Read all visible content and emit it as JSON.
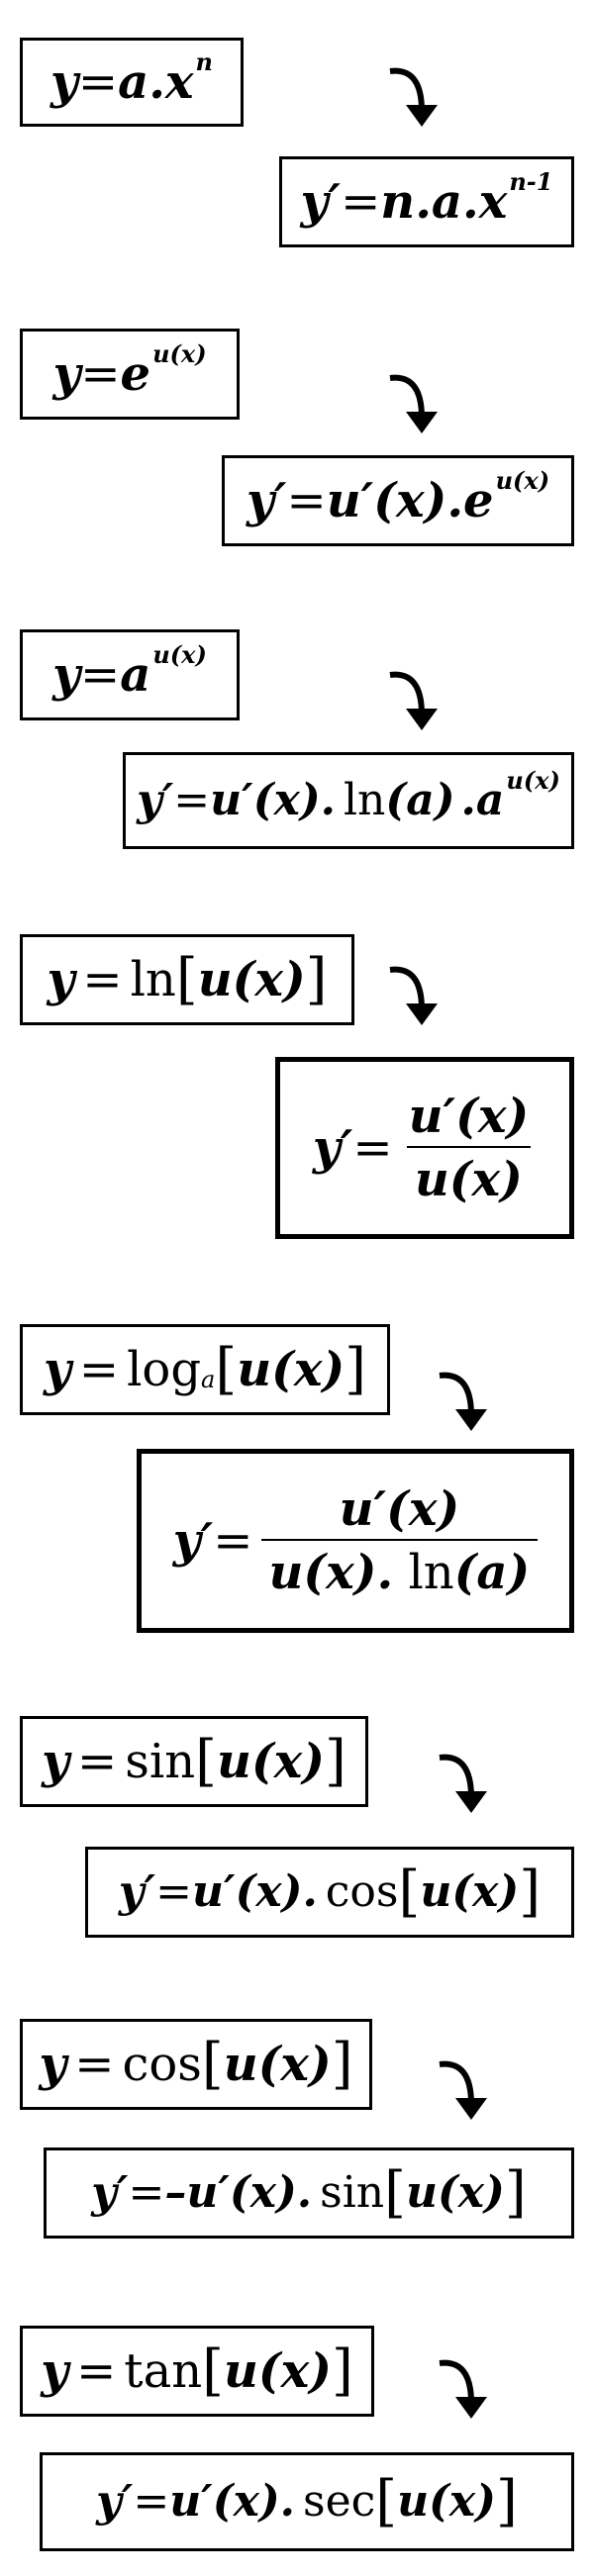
{
  "rules": [
    {
      "id": "power",
      "func": {
        "y": "y",
        "eq": "=",
        "a": "a",
        "dot": ".",
        "x": "x",
        "exp": "n"
      },
      "deriv": {
        "yp": "y′",
        "eq": "=",
        "n": "n",
        "dot1": ".",
        "a": "a",
        "dot2": ".",
        "x": "x",
        "exp": "n-1"
      }
    },
    {
      "id": "exponential",
      "func": {
        "y": "y",
        "eq": "=",
        "e": "e",
        "exp": "u(x)"
      },
      "deriv": {
        "yp": "y′",
        "eq": "=",
        "up": "u′",
        "arg": "(x)",
        "dot": ".",
        "e": "e",
        "exp": "u(x)"
      }
    },
    {
      "id": "general-exponential",
      "func": {
        "y": "y",
        "eq": "=",
        "a": "a",
        "exp": "u(x)"
      },
      "deriv": {
        "yp": "y′",
        "eq": "=",
        "up": "u′",
        "arg": "(x)",
        "dot1": ".",
        "ln": "ln",
        "lnarg": "(a)",
        "dot2": ".",
        "a": "a",
        "exp": "u(x)"
      }
    },
    {
      "id": "natural-log",
      "func": {
        "y": "y",
        "eq": "=",
        "fn": "ln",
        "open": "[",
        "u": "u",
        "arg": "(x)",
        "close": "]"
      },
      "deriv": {
        "yp": "y′",
        "eq": "=",
        "num": "u′(x)",
        "den": "u(x)"
      }
    },
    {
      "id": "log-base-a",
      "func": {
        "y": "y",
        "eq": "=",
        "fn": "log",
        "base": "a",
        "open": "[",
        "u": "u",
        "arg": "(x)",
        "close": "]"
      },
      "deriv": {
        "yp": "y′",
        "eq": "=",
        "num": "u′(x)",
        "den_u": "u(x)",
        "den_dot": ".",
        "den_ln": "ln",
        "den_arg": "(a)"
      }
    },
    {
      "id": "sine",
      "func": {
        "y": "y",
        "eq": "=",
        "fn": "sin",
        "open": "[",
        "u": "u",
        "arg": "(x)",
        "close": "]"
      },
      "deriv": {
        "yp": "y′",
        "eq": "=",
        "sign": "",
        "up": "u′",
        "arg": "(x)",
        "dot": ".",
        "fn": "cos",
        "open": "[",
        "u": "u",
        "arg2": "(x)",
        "close": "]"
      }
    },
    {
      "id": "cosine",
      "func": {
        "y": "y",
        "eq": "=",
        "fn": "cos",
        "open": "[",
        "u": "u",
        "arg": "(x)",
        "close": "]"
      },
      "deriv": {
        "yp": "y′",
        "eq": "=",
        "sign": "–",
        "up": "u′",
        "arg": "(x)",
        "dot": ".",
        "fn": "sin",
        "open": "[",
        "u": "u",
        "arg2": "(x)",
        "close": "]"
      }
    },
    {
      "id": "tangent",
      "func": {
        "y": "y",
        "eq": "=",
        "fn": "tan",
        "open": "[",
        "u": "u",
        "arg": "(x)",
        "close": "]"
      },
      "deriv": {
        "yp": "y′",
        "eq": "=",
        "sign": "",
        "up": "u′",
        "arg": "(x)",
        "dot": ".",
        "fn": "sec",
        "open": "[",
        "u": "u",
        "arg2": "(x)",
        "close": "]"
      }
    }
  ],
  "icons": {
    "arrow": "curved-arrow-down-icon"
  }
}
